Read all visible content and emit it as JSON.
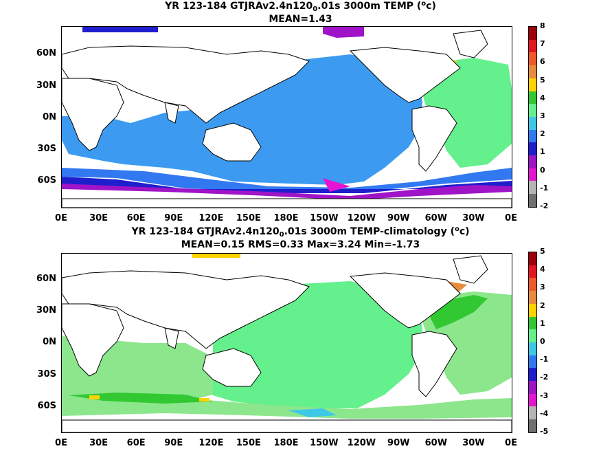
{
  "panel1": {
    "title": "YR 123-184 GTJRAv2.4n120",
    "title_sub": "0",
    "title_rest": ".01s 3000m TEMP (",
    "title_deg": "o",
    "title_end": "c)",
    "stats": "MEAN=1.43",
    "colorbar_ticks": [
      "8",
      "7",
      "6",
      "5",
      "4",
      "3",
      "2",
      "1",
      "0",
      "-1",
      "-2"
    ],
    "colorbar_colors": [
      "#a0000a",
      "#e6141e",
      "#f05a28",
      "#e68c3c",
      "#ffd200",
      "#32c832",
      "#64f08c",
      "#3cc8e6",
      "#3278f0",
      "#1e1ecd",
      "#a014c8",
      "#e614d2",
      "#b4b4b4",
      "#707070"
    ]
  },
  "panel2": {
    "title": "YR 123-184 GTJRAv2.4n120",
    "title_sub": "0",
    "title_rest": ".01s 3000m TEMP-climatology (",
    "title_deg": "o",
    "title_end": "c)",
    "stats": "MEAN=0.15   RMS=0.33   Max=3.24   Min=-1.73",
    "colorbar_ticks": [
      "5",
      "4",
      "3",
      "2",
      "1",
      "0",
      "-1",
      "-2",
      "-3",
      "-4",
      "-5"
    ],
    "colorbar_colors": [
      "#a0000a",
      "#e6141e",
      "#f05a28",
      "#e68c3c",
      "#ffd200",
      "#32c832",
      "#64f08c",
      "#3cc8e6",
      "#3278f0",
      "#1e1ecd",
      "#a014c8",
      "#e614d2",
      "#b4b4b4",
      "#707070"
    ]
  },
  "axes": {
    "lat_labels": [
      "60N",
      "30N",
      "0N",
      "30S",
      "60S"
    ],
    "lon_labels": [
      "0E",
      "30E",
      "60E",
      "90E",
      "120E",
      "150E",
      "180E",
      "150W",
      "120W",
      "90W",
      "60W",
      "30W",
      "0E"
    ]
  }
}
